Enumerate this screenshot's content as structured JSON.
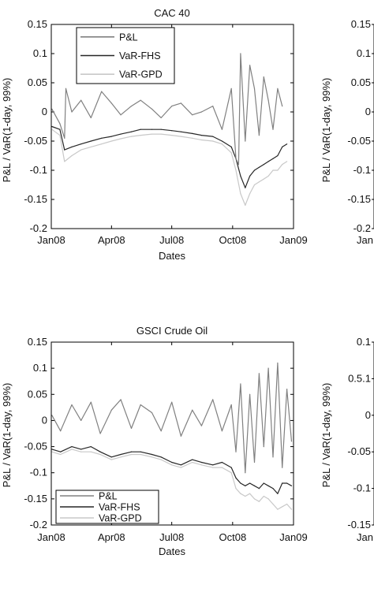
{
  "colors": {
    "pl": "#808080",
    "var_fhs": "#262626",
    "var_gpd": "#c8c8c8",
    "axis": "#000000",
    "background": "#ffffff"
  },
  "chart_data": [
    {
      "type": "line",
      "title": "CAC 40",
      "xlabel": "Dates",
      "ylabel": "P&L / VaR(1-day, 99%)",
      "ylim": [
        -0.2,
        0.15
      ],
      "yticks": [
        "0.15",
        "0.1",
        "0.05",
        "0",
        "-0.05",
        "-0.1",
        "-0.15",
        "-0.2"
      ],
      "xticks": [
        "Jan08",
        "Apr08",
        "Jul08",
        "Oct08",
        "Jan09"
      ],
      "legend": {
        "position": "top-left",
        "entries": [
          "P&L",
          "VaR-FHS",
          "VaR-GPD"
        ]
      },
      "grid": false,
      "series": [
        {
          "name": "P&L",
          "x": [
            "2008-01-02",
            "2008-01-14",
            "2008-01-21",
            "2008-01-23",
            "2008-02-01",
            "2008-02-15",
            "2008-03-01",
            "2008-03-17",
            "2008-04-01",
            "2008-04-15",
            "2008-05-01",
            "2008-05-15",
            "2008-06-01",
            "2008-06-15",
            "2008-07-01",
            "2008-07-15",
            "2008-08-01",
            "2008-08-15",
            "2008-09-01",
            "2008-09-15",
            "2008-09-29",
            "2008-10-06",
            "2008-10-10",
            "2008-10-13",
            "2008-10-20",
            "2008-10-27",
            "2008-11-03",
            "2008-11-10",
            "2008-11-17",
            "2008-11-24",
            "2008-12-01",
            "2008-12-08",
            "2008-12-15"
          ],
          "values": [
            0.005,
            -0.02,
            -0.045,
            0.04,
            0.0,
            0.02,
            -0.01,
            0.035,
            0.015,
            -0.005,
            0.01,
            0.02,
            0.005,
            -0.01,
            0.01,
            0.015,
            -0.005,
            0.0,
            0.01,
            -0.03,
            0.04,
            -0.08,
            -0.09,
            0.1,
            -0.05,
            0.08,
            0.04,
            -0.04,
            0.06,
            0.02,
            -0.03,
            0.04,
            0.01
          ]
        },
        {
          "name": "VaR-FHS",
          "x": [
            "2008-01-02",
            "2008-01-14",
            "2008-01-21",
            "2008-02-01",
            "2008-02-15",
            "2008-03-01",
            "2008-03-17",
            "2008-04-01",
            "2008-04-15",
            "2008-05-01",
            "2008-05-15",
            "2008-06-01",
            "2008-06-15",
            "2008-07-01",
            "2008-07-15",
            "2008-08-01",
            "2008-08-15",
            "2008-09-01",
            "2008-09-15",
            "2008-09-29",
            "2008-10-06",
            "2008-10-13",
            "2008-10-20",
            "2008-10-27",
            "2008-11-03",
            "2008-11-10",
            "2008-11-17",
            "2008-11-24",
            "2008-12-01",
            "2008-12-08",
            "2008-12-15",
            "2008-12-22"
          ],
          "values": [
            -0.025,
            -0.03,
            -0.065,
            -0.06,
            -0.055,
            -0.05,
            -0.045,
            -0.042,
            -0.038,
            -0.034,
            -0.03,
            -0.03,
            -0.03,
            -0.032,
            -0.034,
            -0.037,
            -0.04,
            -0.042,
            -0.05,
            -0.06,
            -0.08,
            -0.11,
            -0.13,
            -0.11,
            -0.1,
            -0.095,
            -0.09,
            -0.085,
            -0.08,
            -0.075,
            -0.06,
            -0.055
          ]
        },
        {
          "name": "VaR-GPD",
          "x": [
            "2008-01-02",
            "2008-01-14",
            "2008-01-21",
            "2008-02-01",
            "2008-02-15",
            "2008-03-01",
            "2008-03-17",
            "2008-04-01",
            "2008-04-15",
            "2008-05-01",
            "2008-05-15",
            "2008-06-01",
            "2008-06-15",
            "2008-07-01",
            "2008-07-15",
            "2008-08-01",
            "2008-08-15",
            "2008-09-01",
            "2008-09-15",
            "2008-09-29",
            "2008-10-06",
            "2008-10-13",
            "2008-10-20",
            "2008-10-27",
            "2008-11-03",
            "2008-11-10",
            "2008-11-17",
            "2008-11-24",
            "2008-12-01",
            "2008-12-08",
            "2008-12-15",
            "2008-12-22"
          ],
          "values": [
            -0.03,
            -0.04,
            -0.085,
            -0.075,
            -0.065,
            -0.06,
            -0.055,
            -0.05,
            -0.046,
            -0.042,
            -0.04,
            -0.038,
            -0.038,
            -0.04,
            -0.042,
            -0.045,
            -0.048,
            -0.05,
            -0.055,
            -0.07,
            -0.1,
            -0.14,
            -0.16,
            -0.14,
            -0.125,
            -0.12,
            -0.115,
            -0.11,
            -0.1,
            -0.1,
            -0.09,
            -0.085
          ]
        }
      ]
    },
    {
      "type": "line",
      "title": "GSCI Crude Oil",
      "xlabel": "Dates",
      "ylabel": "P&L / VaR(1-day, 99%)",
      "ylim": [
        -0.2,
        0.15
      ],
      "yticks": [
        "0.15",
        "0.1",
        "0.05",
        "0",
        "-0.05",
        "-0.1",
        "-0.15",
        "-0.2"
      ],
      "xticks": [
        "Jan08",
        "Apr08",
        "Jul08",
        "Oct08",
        "Jan09"
      ],
      "legend": {
        "position": "bottom-left",
        "entries": [
          "P&L",
          "VaR-FHS",
          "VaR-GPD"
        ]
      },
      "grid": false,
      "series": [
        {
          "name": "P&L",
          "x": [
            "2008-01-02",
            "2008-01-15",
            "2008-02-01",
            "2008-02-15",
            "2008-03-01",
            "2008-03-15",
            "2008-04-01",
            "2008-04-15",
            "2008-05-01",
            "2008-05-15",
            "2008-06-01",
            "2008-06-15",
            "2008-07-01",
            "2008-07-15",
            "2008-08-01",
            "2008-08-15",
            "2008-09-01",
            "2008-09-15",
            "2008-09-29",
            "2008-10-06",
            "2008-10-13",
            "2008-10-20",
            "2008-10-27",
            "2008-11-03",
            "2008-11-10",
            "2008-11-17",
            "2008-11-24",
            "2008-12-01",
            "2008-12-08",
            "2008-12-15",
            "2008-12-22",
            "2008-12-29"
          ],
          "values": [
            0.01,
            -0.02,
            0.03,
            0.0,
            0.035,
            -0.025,
            0.02,
            0.04,
            -0.015,
            0.03,
            0.015,
            -0.02,
            0.035,
            -0.03,
            0.02,
            -0.01,
            0.04,
            -0.02,
            0.03,
            -0.06,
            0.07,
            -0.1,
            0.05,
            -0.08,
            0.09,
            -0.05,
            0.1,
            -0.07,
            0.11,
            -0.09,
            0.06,
            -0.04
          ]
        },
        {
          "name": "VaR-FHS",
          "x": [
            "2008-01-02",
            "2008-01-15",
            "2008-02-01",
            "2008-02-15",
            "2008-03-01",
            "2008-03-15",
            "2008-04-01",
            "2008-04-15",
            "2008-05-01",
            "2008-05-15",
            "2008-06-01",
            "2008-06-15",
            "2008-07-01",
            "2008-07-15",
            "2008-08-01",
            "2008-08-15",
            "2008-09-01",
            "2008-09-15",
            "2008-09-29",
            "2008-10-06",
            "2008-10-13",
            "2008-10-20",
            "2008-10-27",
            "2008-11-03",
            "2008-11-10",
            "2008-11-17",
            "2008-11-24",
            "2008-12-01",
            "2008-12-08",
            "2008-12-15",
            "2008-12-22",
            "2008-12-29"
          ],
          "values": [
            -0.055,
            -0.06,
            -0.05,
            -0.055,
            -0.05,
            -0.06,
            -0.07,
            -0.065,
            -0.06,
            -0.06,
            -0.065,
            -0.07,
            -0.08,
            -0.085,
            -0.075,
            -0.08,
            -0.085,
            -0.08,
            -0.09,
            -0.11,
            -0.12,
            -0.125,
            -0.12,
            -0.125,
            -0.13,
            -0.12,
            -0.125,
            -0.13,
            -0.14,
            -0.12,
            -0.12,
            -0.125
          ]
        },
        {
          "name": "VaR-GPD",
          "x": [
            "2008-01-02",
            "2008-01-15",
            "2008-02-01",
            "2008-02-15",
            "2008-03-01",
            "2008-03-15",
            "2008-04-01",
            "2008-04-15",
            "2008-05-01",
            "2008-05-15",
            "2008-06-01",
            "2008-06-15",
            "2008-07-01",
            "2008-07-15",
            "2008-08-01",
            "2008-08-15",
            "2008-09-01",
            "2008-09-15",
            "2008-09-29",
            "2008-10-06",
            "2008-10-13",
            "2008-10-20",
            "2008-10-27",
            "2008-11-03",
            "2008-11-10",
            "2008-11-17",
            "2008-11-24",
            "2008-12-01",
            "2008-12-08",
            "2008-12-15",
            "2008-12-22",
            "2008-12-29"
          ],
          "values": [
            -0.06,
            -0.065,
            -0.055,
            -0.06,
            -0.06,
            -0.065,
            -0.075,
            -0.07,
            -0.065,
            -0.065,
            -0.07,
            -0.075,
            -0.085,
            -0.09,
            -0.08,
            -0.085,
            -0.09,
            -0.09,
            -0.1,
            -0.13,
            -0.14,
            -0.145,
            -0.14,
            -0.15,
            -0.155,
            -0.145,
            -0.15,
            -0.16,
            -0.17,
            -0.165,
            -0.16,
            -0.17
          ]
        }
      ]
    },
    {
      "type": "line",
      "title": "",
      "xlabel": "",
      "ylabel": "P&L / VaR(1-day, 99%)",
      "yticks": [
        "0.15",
        "0.1",
        "0.05",
        "0",
        "-0.05",
        "-0.1",
        "-0.15",
        "-0.2"
      ],
      "xticks": [
        "Jan"
      ]
    },
    {
      "type": "line",
      "title": "",
      "xlabel": "",
      "ylabel": "P&L / VaR(1-day, 99%)",
      "yticks": [
        "0.1",
        "0.5.1",
        "0",
        "-0.05",
        "-0.1",
        "-0.15"
      ],
      "xticks": [
        "Jan"
      ]
    }
  ]
}
